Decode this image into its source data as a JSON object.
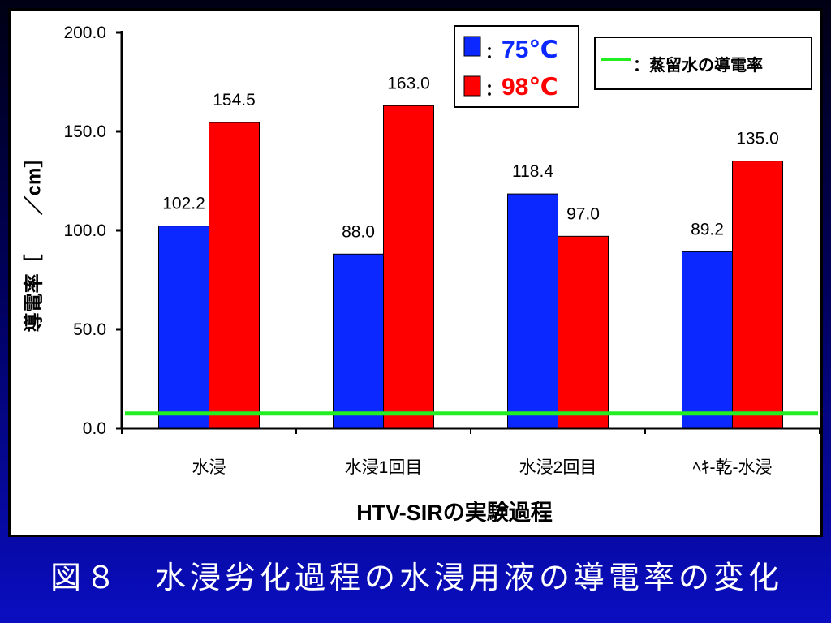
{
  "caption": "図８　水浸劣化過程の水浸用液の導電率の変化",
  "colors": {
    "slide_background_top": "#000014",
    "slide_background_bottom": "#0a0ec0",
    "panel_background": "#ffffff",
    "text": "#000000",
    "caption_text": "#ffffff"
  },
  "legend": {
    "separator": "："
  },
  "chart_data": {
    "type": "bar",
    "categories": [
      "水浸",
      "水浸1回目",
      "水浸2回目",
      "ﾍｷ-乾-水浸"
    ],
    "series": [
      {
        "name": "75℃",
        "color": "#0a28ff",
        "values": [
          102.2,
          88.0,
          118.4,
          89.2
        ]
      },
      {
        "name": "98℃",
        "color": "#ff0000",
        "values": [
          154.5,
          163.0,
          97.0,
          135.0
        ]
      }
    ],
    "reference_line": {
      "name": "蒸留水の導電率",
      "value": 7.5,
      "color": "#22ee22"
    },
    "xlabel": "HTV-SIRの実験過程",
    "ylabel": "導電率［　　／cm］",
    "ylim": [
      0,
      200
    ],
    "yticks": [
      "0.0",
      "50.0",
      "100.0",
      "150.0",
      "200.0"
    ],
    "data_labels": true,
    "grid": false,
    "legend": "top-right"
  }
}
